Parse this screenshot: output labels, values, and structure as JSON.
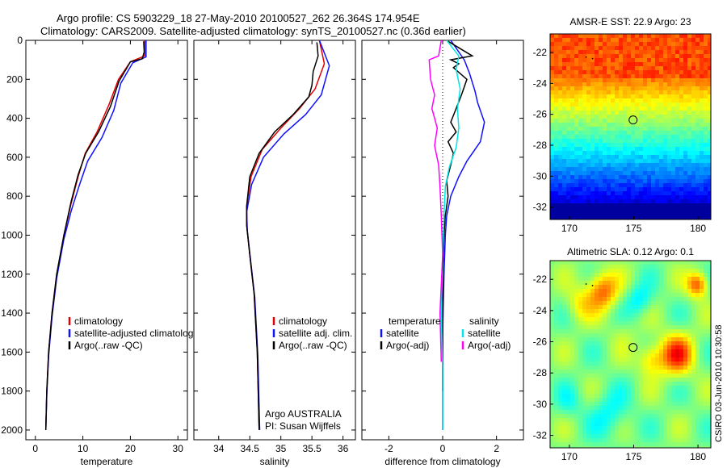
{
  "header": {
    "title_line1": "Argo profile: CS 5903229_18 27-May-2010 20100527_262 26.364S 174.954E",
    "title_line2": "Climatology: CARS2009. Satellite-adjusted climatology: synTS_20100527.nc (0.36d earlier)"
  },
  "colors": {
    "climatology": "#e00000",
    "satellite": "#1010ff",
    "argo": "#000000",
    "argo_adj_sal": "#ff00ff",
    "satellite_sal": "#00e5e5"
  },
  "credit": "CSIRO 03-Jun-2010 10:30:58",
  "chart_data": [
    {
      "type": "line",
      "name": "temperature-profile",
      "xlabel": "temperature",
      "xlim": [
        -2,
        32
      ],
      "ylim": [
        0,
        2050
      ],
      "xticks": [
        0,
        10,
        20,
        30
      ],
      "yticks": [
        0,
        200,
        400,
        600,
        800,
        1000,
        1200,
        1400,
        1600,
        1800,
        2000
      ],
      "legend": [
        "climatology",
        "satellite-adjusted climatolog",
        "Argo(..raw -QC)"
      ],
      "series": [
        {
          "name": "climatology",
          "color": "#e00000",
          "points": [
            [
              23,
              0
            ],
            [
              23,
              80
            ],
            [
              20,
              110
            ],
            [
              17.5,
              200
            ],
            [
              15.5,
              330
            ],
            [
              13,
              470
            ],
            [
              10.5,
              580
            ],
            [
              9,
              700
            ],
            [
              7.5,
              840
            ],
            [
              6,
              1000
            ],
            [
              4.5,
              1200
            ],
            [
              3.5,
              1400
            ],
            [
              2.8,
              1600
            ],
            [
              2.4,
              1800
            ],
            [
              2.2,
              2000
            ]
          ]
        },
        {
          "name": "satellite-adjusted climatolog",
          "color": "#1010ff",
          "points": [
            [
              23.3,
              0
            ],
            [
              23.3,
              85
            ],
            [
              20.5,
              115
            ],
            [
              18,
              220
            ],
            [
              16.5,
              360
            ],
            [
              14,
              500
            ],
            [
              11,
              620
            ],
            [
              9.3,
              740
            ],
            [
              7.6,
              870
            ],
            [
              6,
              1020
            ],
            [
              4.5,
              1220
            ],
            [
              3.5,
              1420
            ],
            [
              2.8,
              1620
            ],
            [
              2.4,
              1820
            ],
            [
              2.2,
              2000
            ]
          ]
        },
        {
          "name": "Argo(..raw -QC)",
          "color": "#000000",
          "points": [
            [
              22.8,
              5
            ],
            [
              22.9,
              60
            ],
            [
              22.5,
              95
            ],
            [
              20,
              110
            ],
            [
              17.6,
              210
            ],
            [
              15.8,
              340
            ],
            [
              13.3,
              470
            ],
            [
              10.6,
              580
            ],
            [
              9,
              690
            ],
            [
              7.5,
              830
            ],
            [
              6,
              1000
            ],
            [
              4.5,
              1200
            ],
            [
              3.5,
              1400
            ],
            [
              2.8,
              1600
            ],
            [
              2.4,
              1800
            ],
            [
              2.2,
              2000
            ]
          ]
        }
      ]
    },
    {
      "type": "line",
      "name": "salinity-profile",
      "xlabel": "salinity",
      "xlim": [
        33.6,
        36.2
      ],
      "ylim": [
        0,
        2050
      ],
      "xticks": [
        34,
        34.5,
        35,
        35.5,
        36
      ],
      "legend": [
        "climatology",
        "satellite adj. clim.",
        "Argo(..raw -QC)"
      ],
      "annotation": [
        "Argo AUSTRALIA",
        "PI: Susan Wijffels"
      ],
      "series": [
        {
          "name": "climatology",
          "color": "#e00000",
          "points": [
            [
              35.62,
              0
            ],
            [
              35.7,
              120
            ],
            [
              35.55,
              250
            ],
            [
              35.3,
              350
            ],
            [
              35,
              450
            ],
            [
              34.7,
              560
            ],
            [
              34.52,
              700
            ],
            [
              34.45,
              850
            ],
            [
              34.45,
              950
            ],
            [
              34.5,
              1100
            ],
            [
              34.57,
              1300
            ],
            [
              34.62,
              1600
            ],
            [
              34.65,
              2000
            ]
          ]
        },
        {
          "name": "satellite adj. clim.",
          "color": "#1010ff",
          "points": [
            [
              35.62,
              0
            ],
            [
              35.78,
              130
            ],
            [
              35.65,
              280
            ],
            [
              35.4,
              380
            ],
            [
              35.05,
              480
            ],
            [
              34.72,
              600
            ],
            [
              34.53,
              740
            ],
            [
              34.45,
              880
            ],
            [
              34.46,
              980
            ],
            [
              34.51,
              1120
            ],
            [
              34.58,
              1320
            ],
            [
              34.63,
              1620
            ],
            [
              34.66,
              2000
            ]
          ]
        },
        {
          "name": "Argo(..raw -QC)",
          "color": "#000000",
          "points": [
            [
              35.58,
              10
            ],
            [
              35.6,
              80
            ],
            [
              35.52,
              160
            ],
            [
              35.5,
              230
            ],
            [
              35.45,
              290
            ],
            [
              35.2,
              380
            ],
            [
              34.9,
              470
            ],
            [
              34.65,
              580
            ],
            [
              34.5,
              700
            ],
            [
              34.45,
              850
            ],
            [
              34.45,
              950
            ],
            [
              34.5,
              1100
            ],
            [
              34.57,
              1300
            ],
            [
              34.62,
              1600
            ],
            [
              34.65,
              2000
            ]
          ]
        }
      ]
    },
    {
      "type": "line",
      "name": "difference-profile",
      "xlabel": "difference from climatology",
      "xlim": [
        -3,
        3
      ],
      "ylim": [
        0,
        2050
      ],
      "xticks": [
        -2,
        0,
        2
      ],
      "legend": [
        "temperature",
        "satellite",
        "Argo(-adj)",
        "salinity",
        "satellite",
        "Argo(-adj)"
      ],
      "series": [
        {
          "name": "temperature satellite",
          "color": "#1010ff",
          "points": [
            [
              0.3,
              0
            ],
            [
              0.8,
              100
            ],
            [
              1,
              170
            ],
            [
              1.2,
              260
            ],
            [
              1.3,
              320
            ],
            [
              1.55,
              420
            ],
            [
              1.4,
              520
            ],
            [
              0.9,
              620
            ],
            [
              0.6,
              700
            ],
            [
              0.3,
              800
            ],
            [
              0.15,
              900
            ],
            [
              0.1,
              1000
            ],
            [
              0.05,
              1200
            ],
            [
              0,
              1500
            ],
            [
              0,
              2000
            ]
          ]
        },
        {
          "name": "temperature Argo(-adj)",
          "color": "#000000",
          "points": [
            [
              0.2,
              5
            ],
            [
              1.1,
              80
            ],
            [
              0.3,
              100
            ],
            [
              0.6,
              120
            ],
            [
              0.4,
              140
            ],
            [
              0.9,
              200
            ],
            [
              0.7,
              280
            ],
            [
              0.5,
              350
            ],
            [
              0.3,
              420
            ],
            [
              0.5,
              470
            ],
            [
              0.2,
              520
            ],
            [
              0.4,
              580
            ],
            [
              0.3,
              640
            ],
            [
              0.15,
              720
            ],
            [
              0.2,
              800
            ],
            [
              0.1,
              900
            ],
            [
              0.05,
              1000
            ],
            [
              0,
              1200
            ],
            [
              0,
              1800
            ]
          ]
        },
        {
          "name": "salinity satellite",
          "color": "#00e5e5",
          "points": [
            [
              0.15,
              0
            ],
            [
              0.6,
              80
            ],
            [
              0.5,
              150
            ],
            [
              0.65,
              250
            ],
            [
              0.55,
              350
            ],
            [
              0.6,
              450
            ],
            [
              0.5,
              550
            ],
            [
              0.25,
              650
            ],
            [
              0.1,
              750
            ],
            [
              0.05,
              900
            ],
            [
              0,
              1100
            ],
            [
              -0.05,
              1400
            ],
            [
              0,
              1700
            ],
            [
              0,
              2000
            ]
          ]
        },
        {
          "name": "salinity Argo(-adj)",
          "color": "#ff00ff",
          "points": [
            [
              -0.05,
              0
            ],
            [
              -0.15,
              80
            ],
            [
              -0.5,
              100
            ],
            [
              -0.45,
              200
            ],
            [
              -0.3,
              280
            ],
            [
              -0.4,
              350
            ],
            [
              -0.2,
              450
            ],
            [
              -0.3,
              540
            ],
            [
              -0.15,
              640
            ],
            [
              -0.1,
              750
            ],
            [
              -0.05,
              900
            ],
            [
              0,
              1100
            ],
            [
              -0.1,
              1400
            ],
            [
              -0.05,
              1650
            ]
          ]
        }
      ]
    },
    {
      "type": "heatmap",
      "name": "sst-map",
      "title": "AMSR-E SST: 22.9  Argo: 23",
      "xlim": [
        168.5,
        181
      ],
      "ylim": [
        -32.8,
        -20.8
      ],
      "xticks": [
        170,
        175,
        180
      ],
      "yticks": [
        -22,
        -24,
        -26,
        -28,
        -30,
        -32
      ],
      "marker": [
        174.954,
        -26.364
      ]
    },
    {
      "type": "heatmap",
      "name": "sla-map",
      "title": "Altimetric SLA: 0.12  Argo: 0.1",
      "xlim": [
        168.5,
        181
      ],
      "ylim": [
        -32.8,
        -20.8
      ],
      "xticks": [
        170,
        175,
        180
      ],
      "yticks": [
        -22,
        -24,
        -26,
        -28,
        -30,
        -32
      ],
      "marker": [
        174.954,
        -26.364
      ]
    }
  ]
}
